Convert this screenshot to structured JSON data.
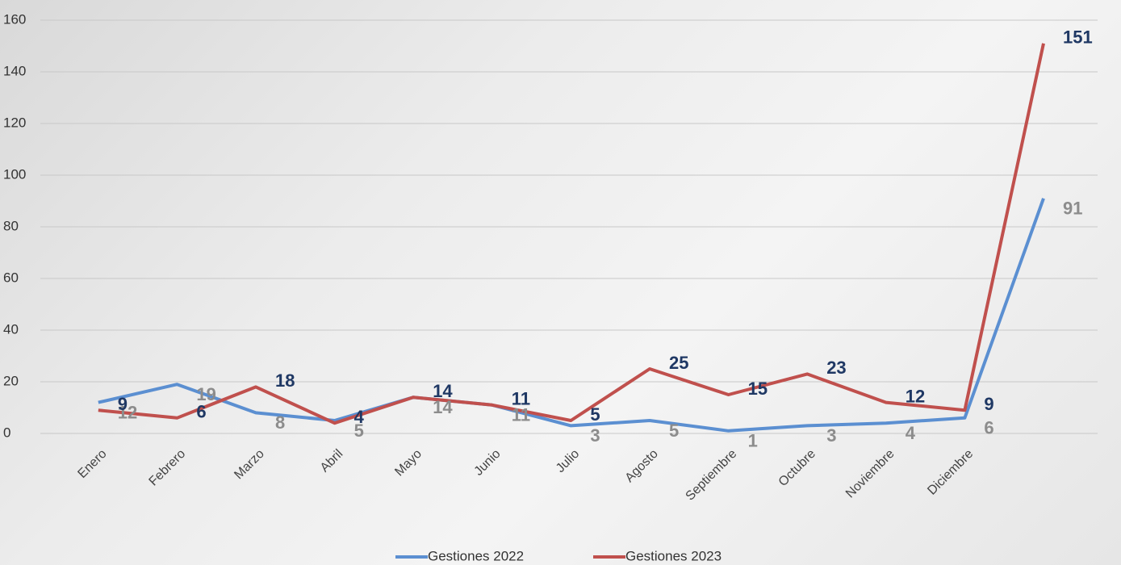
{
  "chart_data": {
    "type": "line",
    "categories": [
      "Enero",
      "Febrero",
      "Marzo",
      "Abril",
      "Mayo",
      "Junio",
      "Julio",
      "Agosto",
      "Septiembre",
      "Octubre",
      "Noviembre",
      "Diciembre",
      null
    ],
    "series": [
      {
        "name": "Gestiones 2022",
        "color": "#5b8fd1",
        "label_color": "#8c8c8c",
        "values": [
          12,
          19,
          8,
          5,
          14,
          11,
          3,
          5,
          1,
          3,
          4,
          6,
          91
        ]
      },
      {
        "name": "Gestiones 2023",
        "color": "#c0504d",
        "label_color": "#1f3864",
        "values": [
          9,
          6,
          18,
          4,
          14,
          11,
          5,
          25,
          15,
          23,
          12,
          9,
          151
        ]
      }
    ],
    "ylim": [
      0,
      160
    ],
    "yticks": [
      0,
      20,
      40,
      60,
      80,
      100,
      120,
      140,
      160
    ],
    "grid": true,
    "legend": "bottom"
  }
}
